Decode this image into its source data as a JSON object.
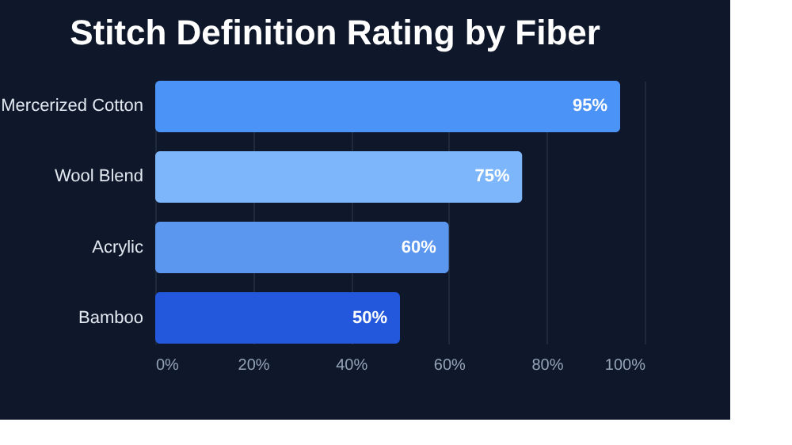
{
  "chart_data": {
    "type": "bar",
    "orientation": "horizontal",
    "title": "Stitch Definition Rating by Fiber",
    "categories": [
      "Mercerized Cotton",
      "Wool Blend",
      "Acrylic",
      "Bamboo"
    ],
    "values": [
      95,
      75,
      60,
      50
    ],
    "colors": [
      "#4b93f6",
      "#7db6fb",
      "#5b96ef",
      "#2358dc"
    ],
    "xlim": [
      0,
      100
    ],
    "xticks": [
      {
        "value": 0,
        "label": "0%"
      },
      {
        "value": 20,
        "label": "20%"
      },
      {
        "value": 40,
        "label": "40%"
      },
      {
        "value": 60,
        "label": "60%"
      },
      {
        "value": 80,
        "label": "80%"
      },
      {
        "value": 100,
        "label": "100%"
      }
    ],
    "value_labels": [
      "95%",
      "75%",
      "60%",
      "50%"
    ],
    "grid": "x"
  }
}
